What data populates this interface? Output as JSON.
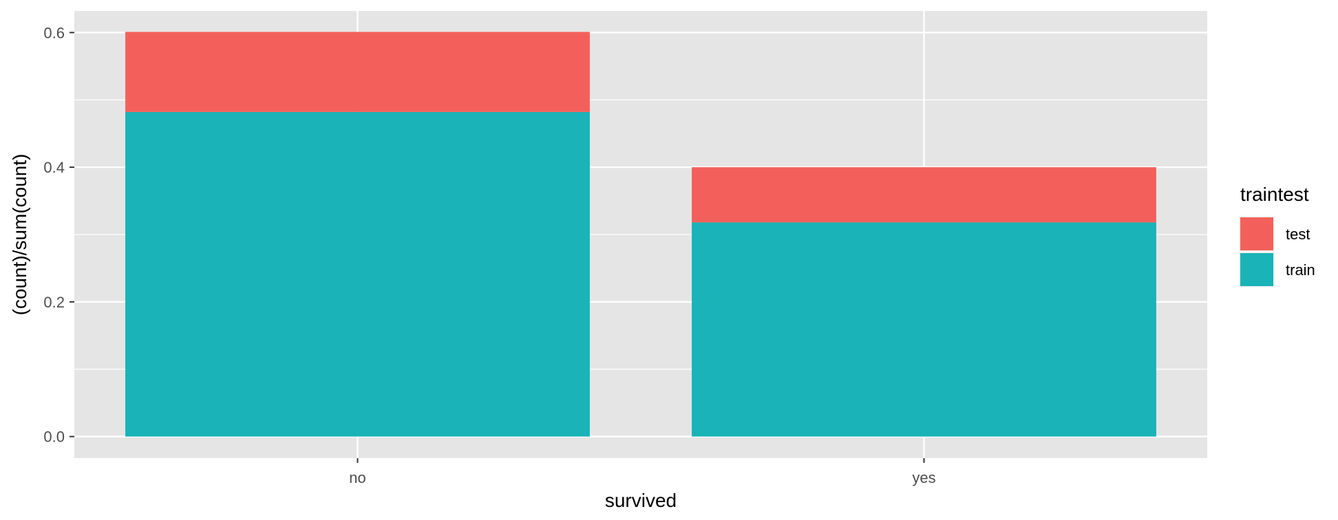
{
  "chart_data": {
    "type": "bar",
    "stacked": true,
    "categories": [
      "no",
      "yes"
    ],
    "series": [
      {
        "name": "train",
        "color": "#19B3B8",
        "values": [
          0.482,
          0.318
        ]
      },
      {
        "name": "test",
        "color": "#F3605B",
        "values": [
          0.119,
          0.082
        ]
      }
    ],
    "xlabel": "survived",
    "ylabel": "(count)/sum(count)",
    "ylim": [
      -0.032,
      0.632
    ],
    "yticks": [
      0.0,
      0.2,
      0.4,
      0.6
    ],
    "ytick_labels": [
      "0.0",
      "0.2",
      "0.4",
      "0.6"
    ],
    "grid": true,
    "legend": {
      "title": "traintest",
      "placement": "right",
      "order": [
        "test",
        "train"
      ]
    },
    "panel_background": "#E5E5E5",
    "grid_color": "#FFFFFF"
  }
}
